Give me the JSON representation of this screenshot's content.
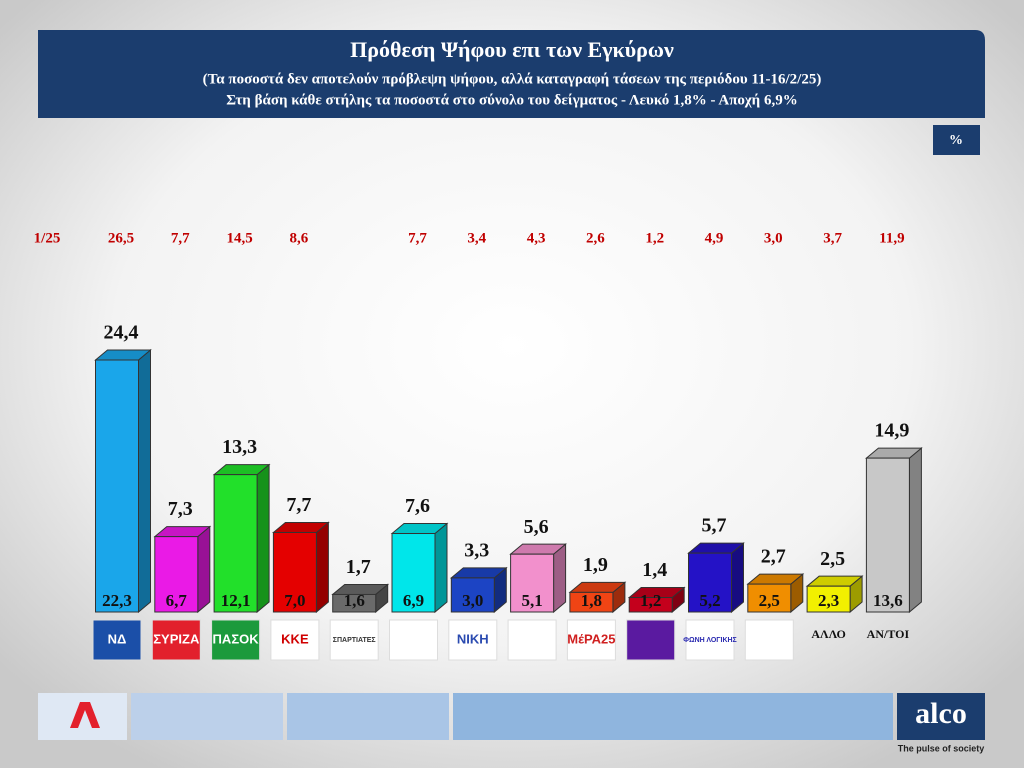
{
  "header": {
    "title": "Πρόθεση Ψήφου επι των Εγκύρων",
    "subtitle_1": "(Τα ποσοστά δεν αποτελούν πρόβλεψη ψήφου, αλλά καταγραφή τάσεων της περιόδου  11-16/2/25)",
    "subtitle_2": "Στη βάση κάθε στήλης τα ποσοστά στο σύνολο του δείγματος - Λευκό 1,8% - Αποχή 6,9%",
    "unit_box": "%"
  },
  "footer": {
    "brand": "alco",
    "tagline": "The pulse of society"
  },
  "chart_data": {
    "type": "bar3d",
    "categories": [
      "ΝΔ",
      "ΣΥΡΙΖΑ",
      "ΠΑΣΟΚ",
      "ΚΚΕ",
      "ΣΠΑΡΤΙΑΤΕΣ",
      null,
      "NIKH",
      null,
      "ΜέΡΑ25",
      null,
      "ΦΩΝΗ ΛΟΓΙΚΗΣ",
      null,
      "ΑΛΛΟ",
      "ΑΝ/ΤΟΙ"
    ],
    "colors": [
      "#1aa6ea",
      "#ea1ae6",
      "#22e02a",
      "#e40000",
      "#6a6a6a",
      "#00e6ea",
      "#1c44c4",
      "#f290cc",
      "#f04414",
      "#c4001c",
      "#2412c6",
      "#f08e00",
      "#f2f000",
      "#c8c8c8"
    ],
    "series": [
      {
        "values": [
          24.4,
          7.3,
          13.3,
          7.7,
          1.7,
          7.6,
          3.3,
          5.6,
          1.9,
          1.4,
          5.7,
          2.7,
          2.5,
          14.9
        ],
        "value_labels": [
          "24,4",
          "7,3",
          "13,3",
          "7,7",
          "1,7",
          "7,6",
          "3,3",
          "5,6",
          "1,9",
          "1,4",
          "5,7",
          "2,7",
          "2,5",
          "14,9"
        ]
      },
      {
        "values": [
          22.3,
          6.7,
          12.1,
          7.0,
          1.6,
          6.9,
          3.0,
          5.1,
          1.8,
          1.2,
          5.2,
          2.5,
          2.3,
          13.6
        ],
        "value_labels": [
          "22,3",
          "6,7",
          "12,1",
          "7,0",
          "1,6",
          "6,9",
          "3,0",
          "5,1",
          "1,8",
          "1,2",
          "5,2",
          "2,5",
          "2,3",
          "13,6"
        ]
      }
    ],
    "previous": {
      "label": "1/25",
      "values": [
        26.5,
        7.7,
        14.5,
        8.6,
        null,
        7.7,
        3.4,
        4.3,
        2.6,
        1.2,
        4.9,
        3.0,
        3.7,
        11.9
      ],
      "value_labels": [
        "26,5",
        "7,7",
        "14,5",
        "8,6",
        null,
        "7,7",
        "3,4",
        "4,3",
        "2,6",
        "1,2",
        "4,9",
        "3,0",
        "3,7",
        "11,9"
      ]
    }
  }
}
